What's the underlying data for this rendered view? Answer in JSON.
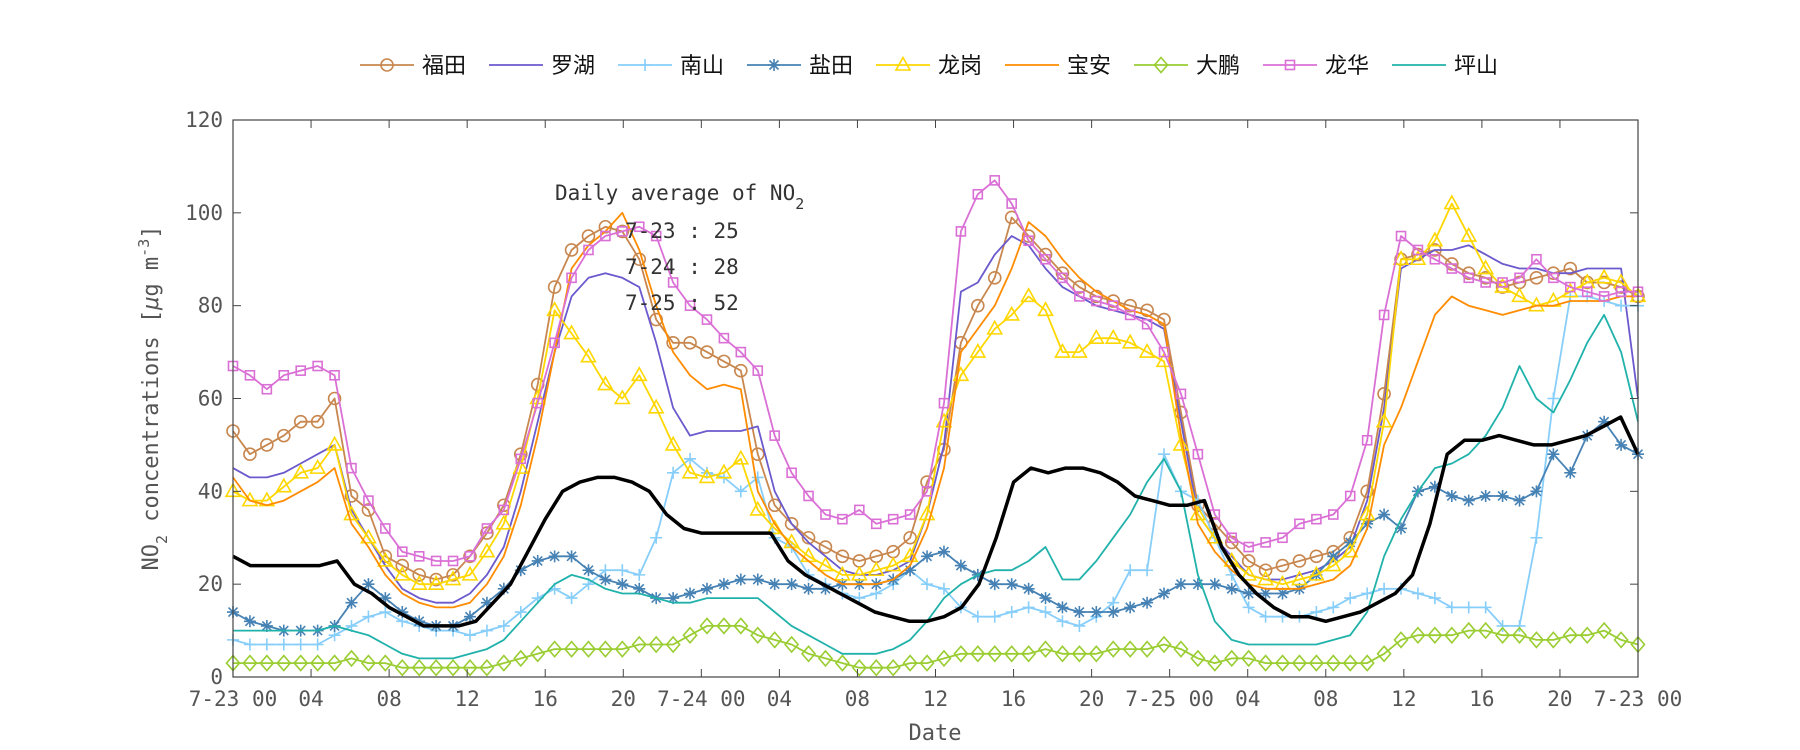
{
  "chart_data": {
    "type": "line",
    "title": "",
    "xlabel": "Date",
    "ylabel": "NO2 concentrations [μg m-3]",
    "ylabel_parts": {
      "base": "NO",
      "sub": "2",
      "mid": " concentrations [",
      "mu": "μ",
      "g": "g m",
      "sup": "-3",
      "end": "]"
    },
    "ylim": [
      0,
      120
    ],
    "xlim": [
      0,
      72
    ],
    "yticks": [
      0,
      20,
      40,
      60,
      80,
      100,
      120
    ],
    "xticks": [
      {
        "x": 0,
        "label": "7-23 00"
      },
      {
        "x": 4,
        "label": "04"
      },
      {
        "x": 8,
        "label": "08"
      },
      {
        "x": 12,
        "label": "12"
      },
      {
        "x": 16,
        "label": "16"
      },
      {
        "x": 20,
        "label": "20"
      },
      {
        "x": 24,
        "label": "7-24 00"
      },
      {
        "x": 28,
        "label": "04"
      },
      {
        "x": 32,
        "label": "08"
      },
      {
        "x": 36,
        "label": "12"
      },
      {
        "x": 40,
        "label": "16"
      },
      {
        "x": 44,
        "label": "20"
      },
      {
        "x": 48,
        "label": "7-25 00"
      },
      {
        "x": 52,
        "label": "04"
      },
      {
        "x": 56,
        "label": "08"
      },
      {
        "x": 60,
        "label": "12"
      },
      {
        "x": 64,
        "label": "16"
      },
      {
        "x": 68,
        "label": "20"
      },
      {
        "x": 72,
        "label": "7-23 00"
      }
    ],
    "grid": false,
    "legend_position": "top",
    "annotation": {
      "title_base": "Daily average of NO",
      "title_sub": "2",
      "lines": [
        "7-23 : 25",
        "7-24 : 28",
        "7-25 : 52"
      ]
    },
    "series": [
      {
        "name": "福田",
        "color": "#C8874F",
        "marker": "circle",
        "values": [
          53,
          48,
          50,
          52,
          55,
          55,
          60,
          39,
          36,
          26,
          24,
          22,
          21,
          22,
          26,
          31,
          37,
          48,
          63,
          84,
          92,
          95,
          97,
          96,
          90,
          77,
          72,
          72,
          70,
          68,
          66,
          48,
          37,
          33,
          30,
          28,
          26,
          25,
          26,
          27,
          30,
          42,
          49,
          72,
          80,
          86,
          99,
          95,
          91,
          87,
          84,
          82,
          81,
          80,
          79,
          77,
          57,
          37,
          33,
          29,
          25,
          23,
          24,
          25,
          26,
          27,
          30,
          40,
          61,
          90,
          91,
          92,
          89,
          87,
          86,
          84,
          85,
          86,
          87,
          88,
          85,
          85,
          84,
          82
        ]
      },
      {
        "name": "罗湖",
        "color": "#6A5ACD",
        "marker": "none",
        "values": [
          45,
          43,
          43,
          44,
          46,
          48,
          50,
          36,
          30,
          24,
          19,
          17,
          16,
          16,
          18,
          22,
          28,
          40,
          55,
          70,
          82,
          86,
          87,
          86,
          84,
          72,
          58,
          52,
          53,
          53,
          53,
          54,
          40,
          33,
          29,
          26,
          23,
          22,
          22,
          23,
          25,
          35,
          50,
          83,
          85,
          91,
          95,
          93,
          88,
          84,
          82,
          80,
          79,
          78,
          77,
          75,
          55,
          35,
          30,
          26,
          22,
          21,
          21,
          22,
          23,
          25,
          28,
          38,
          58,
          88,
          90,
          92,
          92,
          93,
          91,
          89,
          88,
          88,
          87,
          87,
          88,
          88,
          88,
          60
        ]
      },
      {
        "name": "南山",
        "color": "#87CEFA",
        "marker": "plus",
        "values": [
          8,
          7,
          7,
          7,
          7,
          7,
          9,
          11,
          13,
          14,
          12,
          11,
          10,
          10,
          9,
          10,
          11,
          14,
          17,
          19,
          17,
          20,
          23,
          23,
          22,
          30,
          44,
          47,
          44,
          43,
          40,
          43,
          30,
          28,
          22,
          20,
          18,
          17,
          18,
          20,
          23,
          20,
          19,
          15,
          13,
          13,
          14,
          15,
          14,
          12,
          11,
          13,
          16,
          23,
          23,
          48,
          40,
          38,
          30,
          22,
          15,
          13,
          13,
          13,
          14,
          15,
          17,
          18,
          19,
          19,
          18,
          17,
          15,
          15,
          15,
          11,
          11,
          30,
          60,
          82,
          82,
          81,
          80,
          80
        ]
      },
      {
        "name": "盐田",
        "color": "#4682B4",
        "marker": "star",
        "values": [
          14,
          12,
          11,
          10,
          10,
          10,
          11,
          16,
          20,
          17,
          14,
          12,
          11,
          11,
          13,
          16,
          19,
          23,
          25,
          26,
          26,
          23,
          21,
          20,
          19,
          17,
          17,
          18,
          19,
          20,
          21,
          21,
          20,
          20,
          19,
          19,
          20,
          20,
          20,
          21,
          23,
          26,
          27,
          24,
          22,
          20,
          20,
          19,
          17,
          15,
          14,
          14,
          14,
          15,
          16,
          18,
          20,
          20,
          20,
          19,
          18,
          18,
          18,
          19,
          22,
          26,
          29,
          33,
          35,
          32,
          40,
          41,
          39,
          38,
          39,
          39,
          38,
          40,
          48,
          44,
          52,
          55,
          50,
          48
        ]
      },
      {
        "name": "龙岗",
        "color": "#FFD700",
        "marker": "triangle",
        "values": [
          40,
          38,
          38,
          41,
          44,
          45,
          50,
          35,
          30,
          25,
          22,
          20,
          20,
          21,
          22,
          27,
          33,
          45,
          60,
          79,
          74,
          69,
          63,
          60,
          65,
          58,
          50,
          44,
          43,
          44,
          47,
          36,
          32,
          29,
          26,
          24,
          22,
          22,
          23,
          24,
          26,
          35,
          55,
          65,
          70,
          75,
          78,
          82,
          79,
          70,
          70,
          73,
          73,
          72,
          70,
          68,
          50,
          35,
          30,
          25,
          22,
          21,
          20,
          21,
          22,
          24,
          27,
          35,
          55,
          90,
          90,
          94,
          102,
          95,
          88,
          84,
          82,
          80,
          81,
          83,
          85,
          86,
          85,
          82
        ]
      },
      {
        "name": "宝安",
        "color": "#FF8C00",
        "marker": "none",
        "values": [
          43,
          38,
          37,
          38,
          40,
          42,
          45,
          33,
          28,
          22,
          18,
          16,
          15,
          15,
          16,
          20,
          26,
          37,
          52,
          70,
          88,
          93,
          96,
          100,
          92,
          80,
          70,
          65,
          62,
          63,
          62,
          40,
          33,
          28,
          25,
          22,
          20,
          20,
          20,
          21,
          24,
          32,
          45,
          70,
          75,
          80,
          88,
          98,
          95,
          90,
          86,
          83,
          81,
          79,
          78,
          76,
          52,
          33,
          27,
          23,
          20,
          19,
          19,
          19,
          20,
          21,
          24,
          32,
          50,
          58,
          68,
          78,
          82,
          80,
          79,
          78,
          79,
          80,
          80,
          81,
          81,
          81,
          82,
          82
        ]
      },
      {
        "name": "大鹏",
        "color": "#9ACD32",
        "marker": "diamond",
        "values": [
          3,
          3,
          3,
          3,
          3,
          3,
          3,
          4,
          3,
          3,
          2,
          2,
          2,
          2,
          2,
          2,
          3,
          4,
          5,
          6,
          6,
          6,
          6,
          6,
          7,
          7,
          7,
          9,
          11,
          11,
          11,
          9,
          8,
          7,
          5,
          4,
          3,
          2,
          2,
          2,
          3,
          3,
          4,
          5,
          5,
          5,
          5,
          5,
          6,
          5,
          5,
          5,
          6,
          6,
          6,
          7,
          6,
          4,
          3,
          4,
          4,
          3,
          3,
          3,
          3,
          3,
          3,
          3,
          5,
          8,
          9,
          9,
          9,
          10,
          10,
          9,
          9,
          8,
          8,
          9,
          9,
          10,
          8,
          7
        ]
      },
      {
        "name": "龙华",
        "color": "#DA70D6",
        "marker": "square",
        "values": [
          67,
          65,
          62,
          65,
          66,
          67,
          65,
          45,
          38,
          32,
          27,
          26,
          25,
          25,
          26,
          32,
          36,
          47,
          59,
          72,
          86,
          92,
          95,
          96,
          97,
          95,
          85,
          80,
          77,
          73,
          70,
          66,
          52,
          44,
          39,
          35,
          34,
          36,
          33,
          34,
          35,
          40,
          59,
          96,
          104,
          107,
          102,
          94,
          90,
          86,
          82,
          81,
          80,
          78,
          76,
          70,
          61,
          48,
          35,
          30,
          28,
          29,
          30,
          33,
          34,
          35,
          39,
          51,
          78,
          95,
          92,
          90,
          88,
          86,
          85,
          85,
          86,
          90,
          86,
          84,
          83,
          82,
          83,
          83
        ]
      },
      {
        "name": "坪山",
        "color": "#20B2AA",
        "marker": "none",
        "values": [
          10,
          10,
          10,
          10,
          10,
          10,
          11,
          10,
          9,
          7,
          5,
          4,
          4,
          4,
          5,
          6,
          8,
          12,
          16,
          20,
          22,
          21,
          19,
          18,
          18,
          17,
          16,
          16,
          17,
          17,
          17,
          17,
          14,
          11,
          9,
          7,
          5,
          5,
          5,
          6,
          8,
          12,
          17,
          20,
          22,
          23,
          23,
          25,
          28,
          21,
          21,
          25,
          30,
          35,
          42,
          47,
          40,
          22,
          12,
          8,
          7,
          7,
          7,
          7,
          7,
          8,
          9,
          14,
          26,
          34,
          40,
          45,
          46,
          48,
          52,
          58,
          67,
          60,
          57,
          64,
          72,
          78,
          70,
          55
        ]
      },
      {
        "name": "",
        "color": "#000000",
        "marker": "none",
        "linewidth": 3.5,
        "values": [
          26,
          24,
          24,
          24,
          24,
          24,
          25,
          20,
          18,
          15,
          13,
          11,
          11,
          11,
          12,
          16,
          20,
          27,
          34,
          40,
          42,
          43,
          43,
          42,
          40,
          35,
          32,
          31,
          31,
          31,
          31,
          31,
          25,
          22,
          20,
          18,
          16,
          14,
          13,
          12,
          12,
          13,
          15,
          20,
          30,
          42,
          45,
          44,
          45,
          45,
          44,
          42,
          39,
          38,
          37,
          37,
          38,
          28,
          22,
          18,
          15,
          13,
          13,
          12,
          13,
          14,
          16,
          18,
          22,
          33,
          48,
          51,
          51,
          52,
          51,
          50,
          50,
          51,
          52,
          54,
          56,
          48
        ]
      }
    ]
  }
}
